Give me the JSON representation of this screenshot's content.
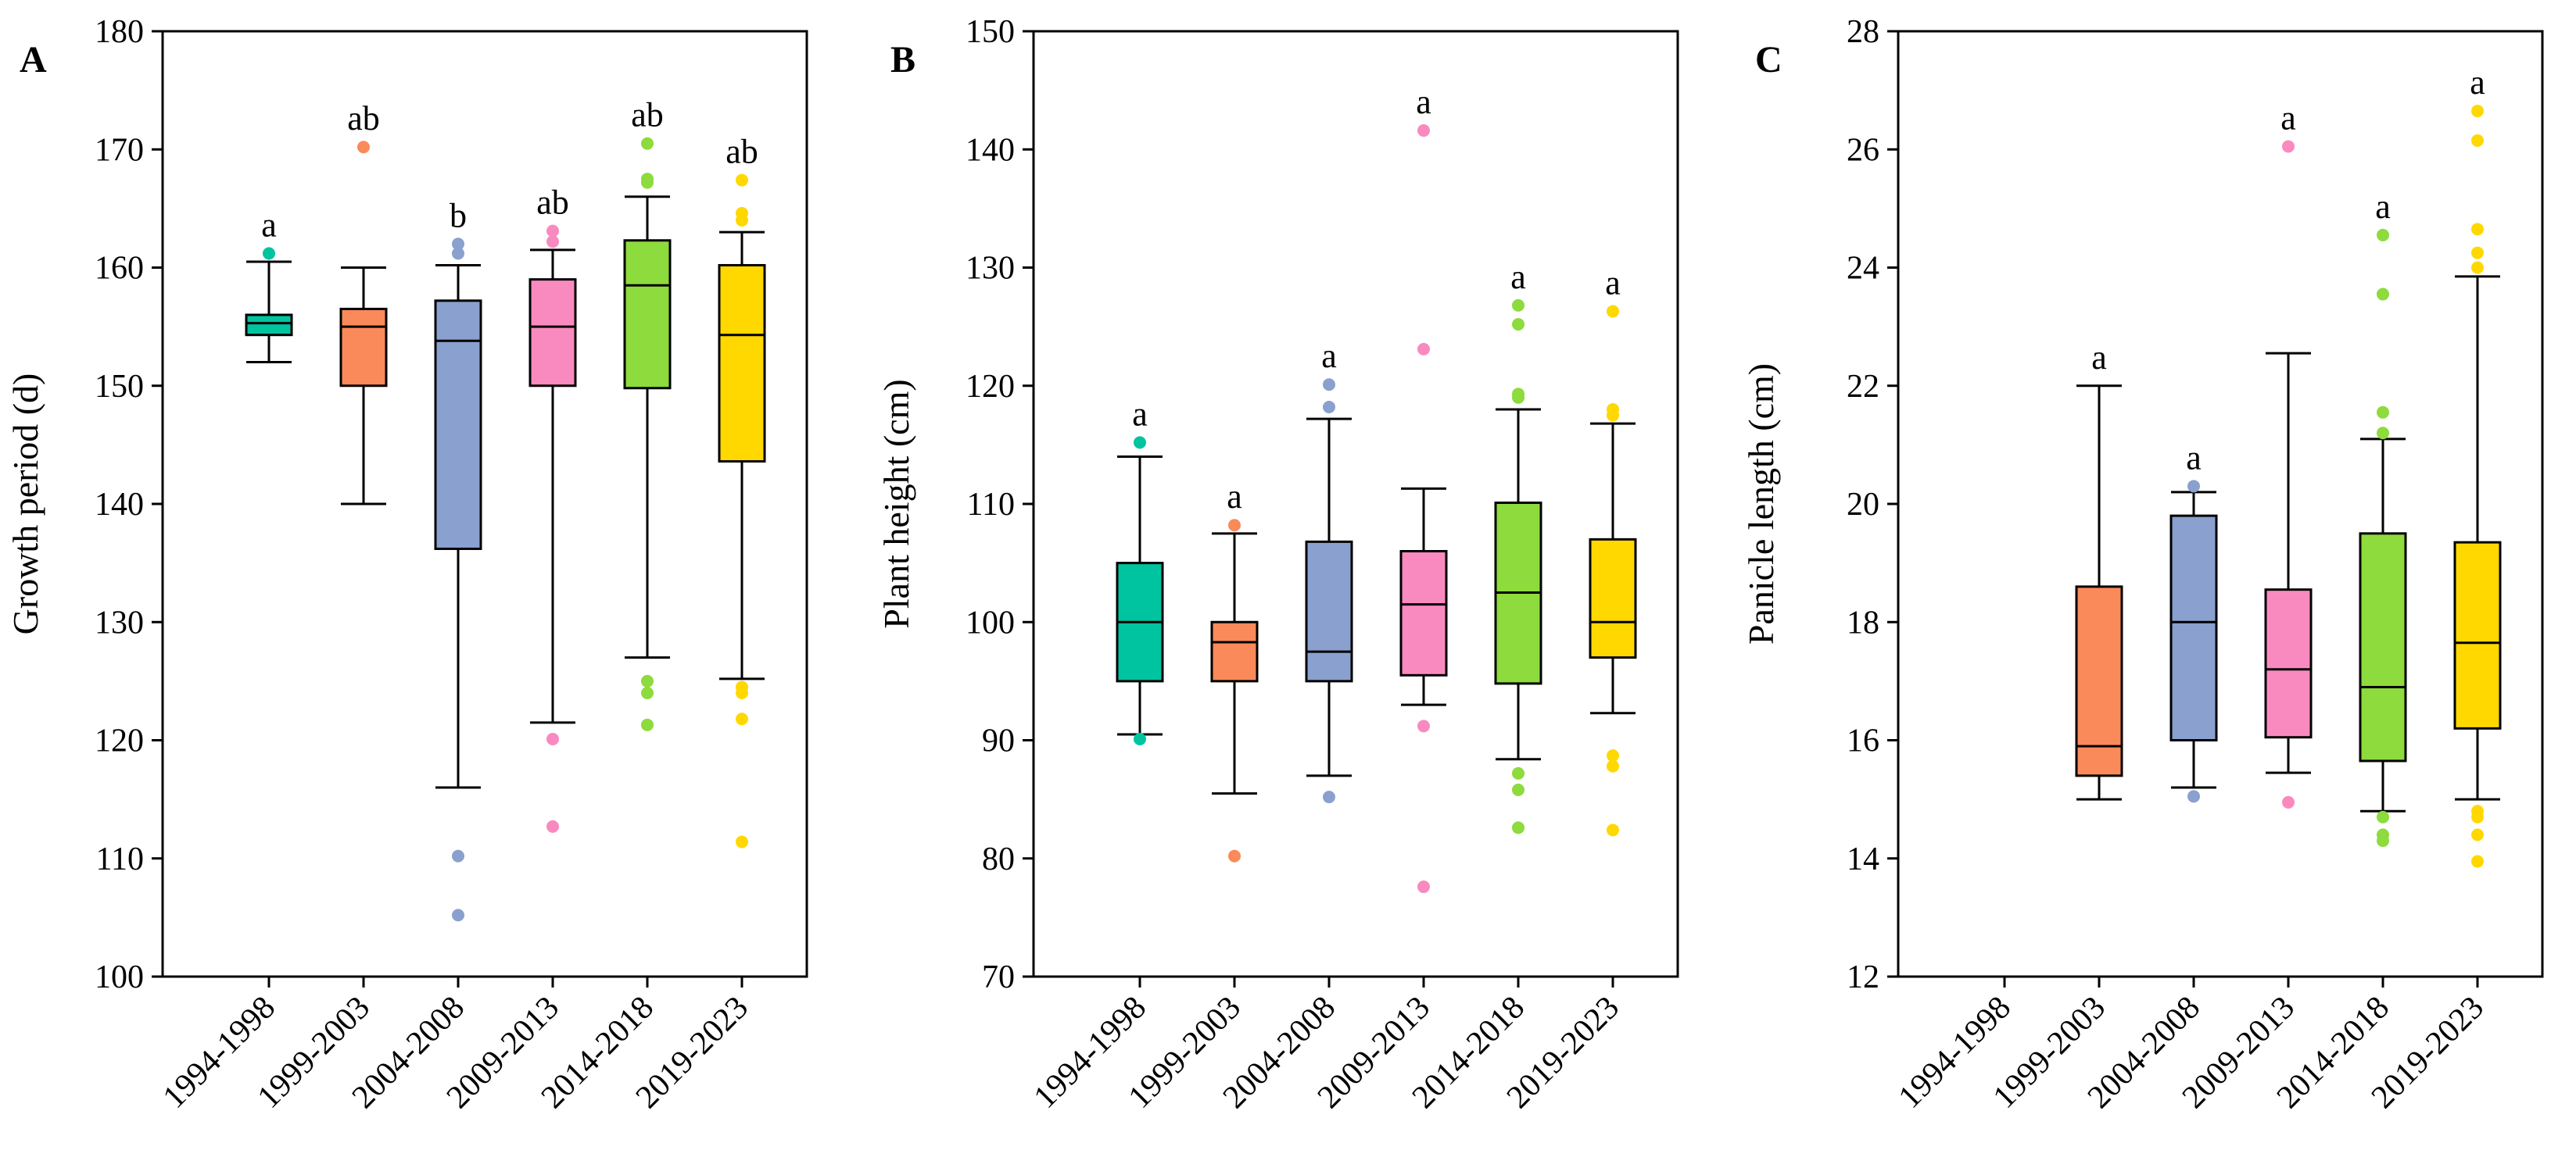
{
  "colors": {
    "1994-1998": "#00C4A0",
    "1999-2003": "#FA8A5A",
    "2004-2008": "#8AA0CE",
    "2009-2013": "#F98ABF",
    "2014-2018": "#8DDB3C",
    "2019-2023": "#FFD800"
  },
  "chart_data": [
    {
      "type": "box",
      "panel_label": "A",
      "ylabel": "Growth period (d)",
      "ylim": [
        100,
        180
      ],
      "yticks": [
        100,
        110,
        120,
        130,
        140,
        150,
        160,
        170,
        180
      ],
      "categories": [
        "1994-1998",
        "1999-2003",
        "2004-2008",
        "2009-2013",
        "2014-2018",
        "2019-2023"
      ],
      "boxes": [
        {
          "category": "1994-1998",
          "whisker_low": 152,
          "q1": 154.3,
          "median": 155.3,
          "q3": 156,
          "whisker_high": 160.5,
          "outliers": [
            161.2
          ],
          "letter": "a"
        },
        {
          "category": "1999-2003",
          "whisker_low": 140,
          "q1": 150,
          "median": 155,
          "q3": 156.5,
          "whisker_high": 160,
          "outliers": [
            170.2
          ],
          "letter": "ab"
        },
        {
          "category": "2004-2008",
          "whisker_low": 116,
          "q1": 136.2,
          "median": 153.8,
          "q3": 157.2,
          "whisker_high": 160.2,
          "outliers": [
            161.2,
            162,
            110.2,
            105.2
          ],
          "letter": "b"
        },
        {
          "category": "2009-2013",
          "whisker_low": 121.5,
          "q1": 150,
          "median": 155,
          "q3": 159,
          "whisker_high": 161.5,
          "outliers": [
            162.2,
            163.1,
            120.1,
            112.7
          ],
          "letter": "ab"
        },
        {
          "category": "2014-2018",
          "whisker_low": 127,
          "q1": 149.8,
          "median": 158.5,
          "q3": 162.3,
          "whisker_high": 166,
          "outliers": [
            167.2,
            167.5,
            170.5,
            125,
            124,
            121.3
          ],
          "letter": "ab"
        },
        {
          "category": "2019-2023",
          "whisker_low": 125.2,
          "q1": 143.6,
          "median": 154.3,
          "q3": 160.2,
          "whisker_high": 163,
          "outliers": [
            164,
            164.6,
            167.4,
            124.5,
            124,
            121.8,
            111.4
          ],
          "letter": "ab"
        }
      ]
    },
    {
      "type": "box",
      "panel_label": "B",
      "ylabel": "Plant height (cm)",
      "ylim": [
        70,
        150
      ],
      "yticks": [
        70,
        80,
        90,
        100,
        110,
        120,
        130,
        140,
        150
      ],
      "categories": [
        "1994-1998",
        "1999-2003",
        "2004-2008",
        "2009-2013",
        "2014-2018",
        "2019-2023"
      ],
      "boxes": [
        {
          "category": "1994-1998",
          "whisker_low": 90.5,
          "q1": 95,
          "median": 100,
          "q3": 105,
          "whisker_high": 114,
          "outliers": [
            115.2,
            90.1
          ],
          "letter": "a"
        },
        {
          "category": "1999-2003",
          "whisker_low": 85.5,
          "q1": 95,
          "median": 98.3,
          "q3": 100,
          "whisker_high": 107.5,
          "outliers": [
            108.2,
            80.2
          ],
          "letter": "a"
        },
        {
          "category": "2004-2008",
          "whisker_low": 87,
          "q1": 95,
          "median": 97.5,
          "q3": 106.8,
          "whisker_high": 117.2,
          "outliers": [
            118.2,
            120.1,
            85.2
          ],
          "letter": "a"
        },
        {
          "category": "2009-2013",
          "whisker_low": 93,
          "q1": 95.5,
          "median": 101.5,
          "q3": 106,
          "whisker_high": 111.3,
          "outliers": [
            141.6,
            123.1,
            91.2,
            77.6
          ],
          "letter": "a"
        },
        {
          "category": "2014-2018",
          "whisker_low": 88.4,
          "q1": 94.8,
          "median": 102.5,
          "q3": 110.1,
          "whisker_high": 118,
          "outliers": [
            119,
            119.3,
            125.2,
            126.8,
            87.2,
            85.8,
            82.6
          ],
          "letter": "a"
        },
        {
          "category": "2019-2023",
          "whisker_low": 92.3,
          "q1": 97,
          "median": 100,
          "q3": 107,
          "whisker_high": 116.8,
          "outliers": [
            117.5,
            118,
            126.3,
            88.7,
            87.8,
            82.4
          ],
          "letter": "a"
        }
      ]
    },
    {
      "type": "box",
      "panel_label": "C",
      "ylabel": "Panicle length (cm)",
      "ylim": [
        12,
        28
      ],
      "yticks": [
        12,
        14,
        16,
        18,
        20,
        22,
        24,
        26,
        28
      ],
      "categories": [
        "1994-1998",
        "1999-2003",
        "2004-2008",
        "2009-2013",
        "2014-2018",
        "2019-2023"
      ],
      "boxes": [
        {
          "category": "1999-2003",
          "whisker_low": 15,
          "q1": 15.4,
          "median": 15.9,
          "q3": 18.6,
          "whisker_high": 22,
          "outliers": [],
          "letter": "a"
        },
        {
          "category": "2004-2008",
          "whisker_low": 15.2,
          "q1": 16,
          "median": 18,
          "q3": 19.8,
          "whisker_high": 20.2,
          "outliers": [
            20.3,
            15.05
          ],
          "letter": "a"
        },
        {
          "category": "2009-2013",
          "whisker_low": 15.45,
          "q1": 16.05,
          "median": 17.2,
          "q3": 18.55,
          "whisker_high": 22.55,
          "outliers": [
            26.05,
            14.95
          ],
          "letter": "a"
        },
        {
          "category": "2014-2018",
          "whisker_low": 14.8,
          "q1": 15.65,
          "median": 16.9,
          "q3": 19.5,
          "whisker_high": 21.1,
          "outliers": [
            21.2,
            21.55,
            23.55,
            24.55,
            14.7,
            14.4,
            14.3
          ],
          "letter": "a"
        },
        {
          "category": "2019-2023",
          "whisker_low": 15,
          "q1": 16.2,
          "median": 17.65,
          "q3": 19.35,
          "whisker_high": 23.85,
          "outliers": [
            24,
            24.25,
            24.65,
            26.15,
            26.65,
            14.8,
            14.7,
            14.4,
            13.95
          ],
          "letter": "a"
        }
      ]
    }
  ]
}
